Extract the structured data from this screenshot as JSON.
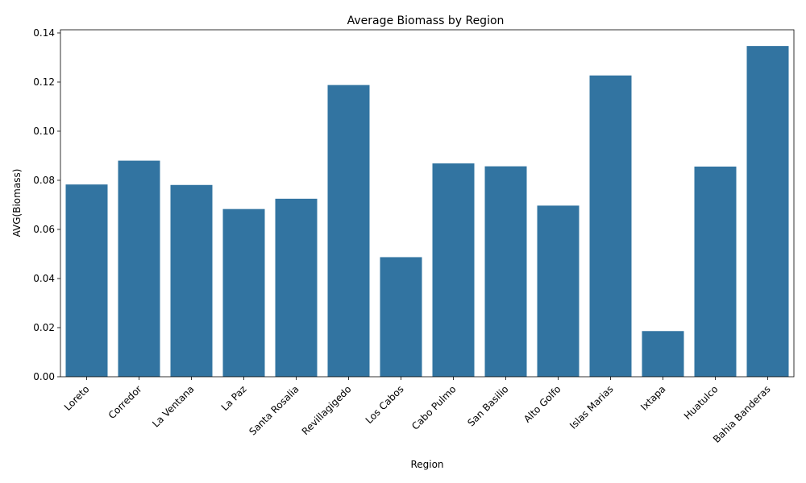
{
  "chart_data": {
    "type": "bar",
    "title": "Average Biomass by Region",
    "xlabel": "Region",
    "ylabel": "AVG(Biomass)",
    "categories": [
      "Loreto",
      "Corredor",
      "La Ventana",
      "La Paz",
      "Santa Rosalia",
      "Revillagigedo",
      "Los Cabos",
      "Cabo Pulmo",
      "San Basilio",
      "Alto Golfo",
      "Islas Marias",
      "Ixtapa",
      "Huatulco",
      "Bahia Banderas"
    ],
    "values": [
      0.0783,
      0.088,
      0.0781,
      0.0683,
      0.0725,
      0.1188,
      0.0487,
      0.0869,
      0.0857,
      0.0697,
      0.1227,
      0.0186,
      0.0856,
      0.1347
    ],
    "ylim": [
      0,
      0.1413
    ],
    "yticks": [
      "0.00",
      "0.02",
      "0.04",
      "0.06",
      "0.08",
      "0.10",
      "0.12",
      "0.14"
    ],
    "grid": false,
    "color": "#3274a1"
  }
}
